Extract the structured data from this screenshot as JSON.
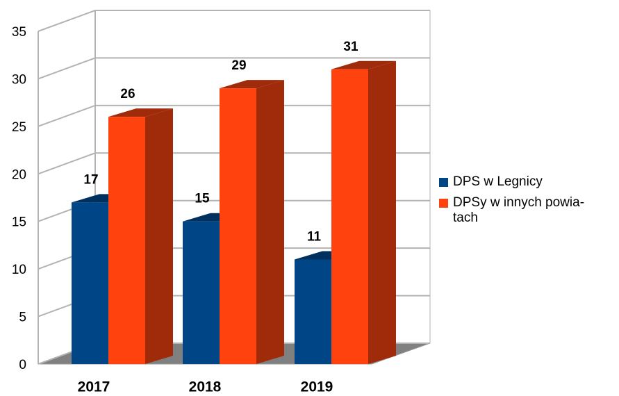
{
  "chart_data": {
    "type": "bar3d",
    "categories": [
      "2017",
      "2018",
      "2019"
    ],
    "series": [
      {
        "name": "DPS w Legnicy",
        "color": "#004586",
        "side_color": "#00305e",
        "values": [
          17,
          15,
          11
        ]
      },
      {
        "name": "DPSy w innych powia­tach",
        "color": "#ff420e",
        "side_color": "#a02b0a",
        "values": [
          26,
          29,
          31
        ]
      }
    ],
    "ylim": [
      0,
      35
    ],
    "yticks": [
      0,
      5,
      10,
      15,
      20,
      25,
      30,
      35
    ],
    "grid": true,
    "legend": "right"
  }
}
